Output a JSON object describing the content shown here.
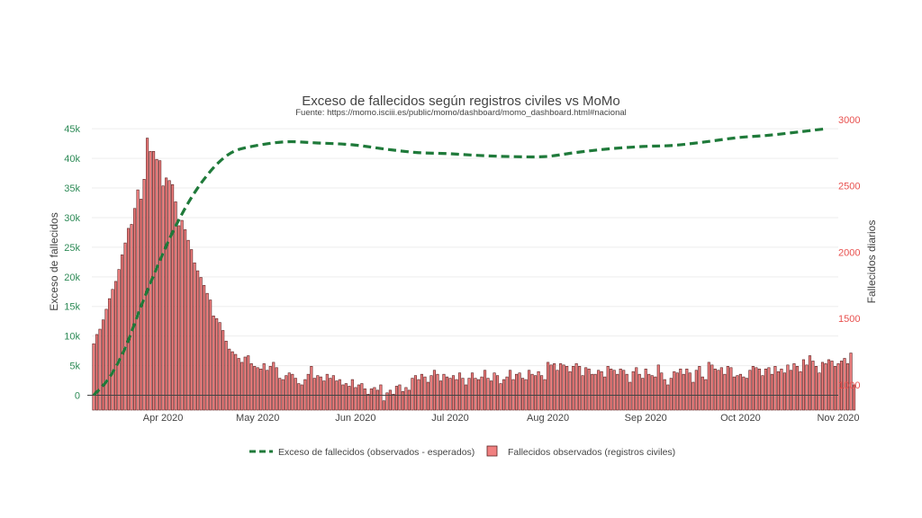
{
  "colors": {
    "left_axis": "#2e8b57",
    "right_axis": "#e8514f",
    "line": "#1f7a3a",
    "bar_fill": "#f08080",
    "bar_stroke": "#5a2020",
    "grid": "#eeeeee",
    "zero_line": "#444444"
  },
  "chart_data": {
    "type": "bar+line",
    "title": "Exceso de fallecidos según registros civiles vs MoMo",
    "subtitle": "Fuente: https://momo.isciii.es/public/momo/dashboard/momo_dashboard.html#nacional",
    "y_left_label": "Exceso de fallecidos",
    "y_right_label": "Fallecidos diarios",
    "y_left_range": [
      -2500,
      47000
    ],
    "y_right_range": [
      810,
      3020
    ],
    "y_left_ticks": [
      0,
      5000,
      10000,
      15000,
      20000,
      25000,
      30000,
      35000,
      40000,
      45000
    ],
    "y_left_tick_labels": [
      "0",
      "5k",
      "10k",
      "15k",
      "20k",
      "25k",
      "30k",
      "35k",
      "40k",
      "45k"
    ],
    "y_right_ticks": [
      1000,
      1500,
      2000,
      2500,
      3000
    ],
    "y_right_tick_labels": [
      "1000",
      "1500",
      "2000",
      "2500",
      "3000"
    ],
    "x_range": [
      "2020-03-08",
      "2020-11-01"
    ],
    "x_ticks": [
      "2020-04-01",
      "2020-05-01",
      "2020-06-01",
      "2020-07-01",
      "2020-08-01",
      "2020-09-01",
      "2020-10-01",
      "2020-11-01"
    ],
    "x_tick_labels": [
      "Apr 2020",
      "May 2020",
      "Jun 2020",
      "Jul 2020",
      "Aug 2020",
      "Sep 2020",
      "Oct 2020",
      "Nov 2020"
    ],
    "grid": true,
    "legend_position": "bottom",
    "series": [
      {
        "name": "Exceso de fallecidos (observados - esperados)",
        "type": "line",
        "axis": "left",
        "style": "dashed",
        "x": [
          "2020-03-10",
          "2020-03-15",
          "2020-03-20",
          "2020-03-25",
          "2020-03-30",
          "2020-04-04",
          "2020-04-09",
          "2020-04-14",
          "2020-04-19",
          "2020-04-24",
          "2020-05-01",
          "2020-05-10",
          "2020-05-20",
          "2020-05-31",
          "2020-06-10",
          "2020-06-20",
          "2020-06-30",
          "2020-07-10",
          "2020-07-20",
          "2020-07-31",
          "2020-08-10",
          "2020-08-20",
          "2020-08-31",
          "2020-09-10",
          "2020-09-20",
          "2020-09-30",
          "2020-10-10",
          "2020-10-20",
          "2020-10-28"
        ],
        "values": [
          0,
          3000,
          8000,
          15000,
          21500,
          27500,
          32500,
          36500,
          39500,
          41300,
          42200,
          42800,
          42600,
          42300,
          41600,
          41000,
          40800,
          40500,
          40300,
          40300,
          41000,
          41600,
          42000,
          42200,
          42800,
          43500,
          43900,
          44500,
          45000
        ]
      },
      {
        "name": "Fallecidos observados (registros civiles)",
        "type": "bar",
        "axis": "right",
        "start_date": "2020-03-10",
        "values": [
          1310,
          1380,
          1420,
          1490,
          1570,
          1650,
          1720,
          1780,
          1870,
          1980,
          2070,
          2180,
          2210,
          2330,
          2470,
          2400,
          2550,
          2860,
          2760,
          2760,
          2700,
          2690,
          2500,
          2560,
          2540,
          2510,
          2380,
          2200,
          2240,
          2170,
          2090,
          2020,
          1920,
          1860,
          1810,
          1750,
          1690,
          1640,
          1520,
          1500,
          1470,
          1410,
          1330,
          1270,
          1250,
          1230,
          1200,
          1170,
          1210,
          1220,
          1160,
          1140,
          1130,
          1120,
          1160,
          1110,
          1140,
          1170,
          1130,
          1050,
          1040,
          1070,
          1090,
          1080,
          1050,
          1010,
          1000,
          1040,
          1080,
          1140,
          1050,
          1070,
          1060,
          1030,
          1080,
          1050,
          1070,
          1030,
          1040,
          1000,
          1010,
          990,
          1040,
          980,
          1000,
          1010,
          970,
          930,
          970,
          980,
          960,
          1000,
          880,
          940,
          960,
          930,
          990,
          1000,
          950,
          980,
          960,
          1050,
          1070,
          1040,
          1080,
          1060,
          1020,
          1070,
          1110,
          1080,
          1030,
          1080,
          1060,
          1050,
          1070,
          1040,
          1090,
          1050,
          1000,
          1050,
          1090,
          1050,
          1040,
          1060,
          1110,
          1050,
          1030,
          1090,
          1070,
          1010,
          1040,
          1060,
          1110,
          1040,
          1080,
          1090,
          1050,
          1040,
          1110,
          1080,
          1070,
          1100,
          1070,
          1040,
          1170,
          1150,
          1160,
          1110,
          1160,
          1150,
          1140,
          1100,
          1140,
          1160,
          1140,
          1070,
          1130,
          1120,
          1080,
          1080,
          1110,
          1100,
          1060,
          1140,
          1120,
          1110,
          1080,
          1120,
          1110,
          1080,
          1020,
          1100,
          1130,
          1080,
          1050,
          1120,
          1080,
          1070,
          1060,
          1150,
          1090,
          1040,
          1000,
          1050,
          1100,
          1090,
          1120,
          1080,
          1120,
          1090,
          1020,
          1110,
          1140,
          1060,
          1040,
          1170,
          1150,
          1120,
          1110,
          1130,
          1080,
          1140,
          1130,
          1060,
          1070,
          1080,
          1060,
          1050,
          1110,
          1140,
          1130,
          1120,
          1070,
          1120,
          1130,
          1080,
          1140,
          1100,
          1120,
          1090,
          1150,
          1110,
          1160,
          1140,
          1100,
          1190,
          1150,
          1220,
          1180,
          1140,
          1090,
          1170,
          1160,
          1190,
          1180,
          1140,
          1160,
          1180,
          1200,
          1160,
          1240,
          1000
        ]
      }
    ]
  }
}
